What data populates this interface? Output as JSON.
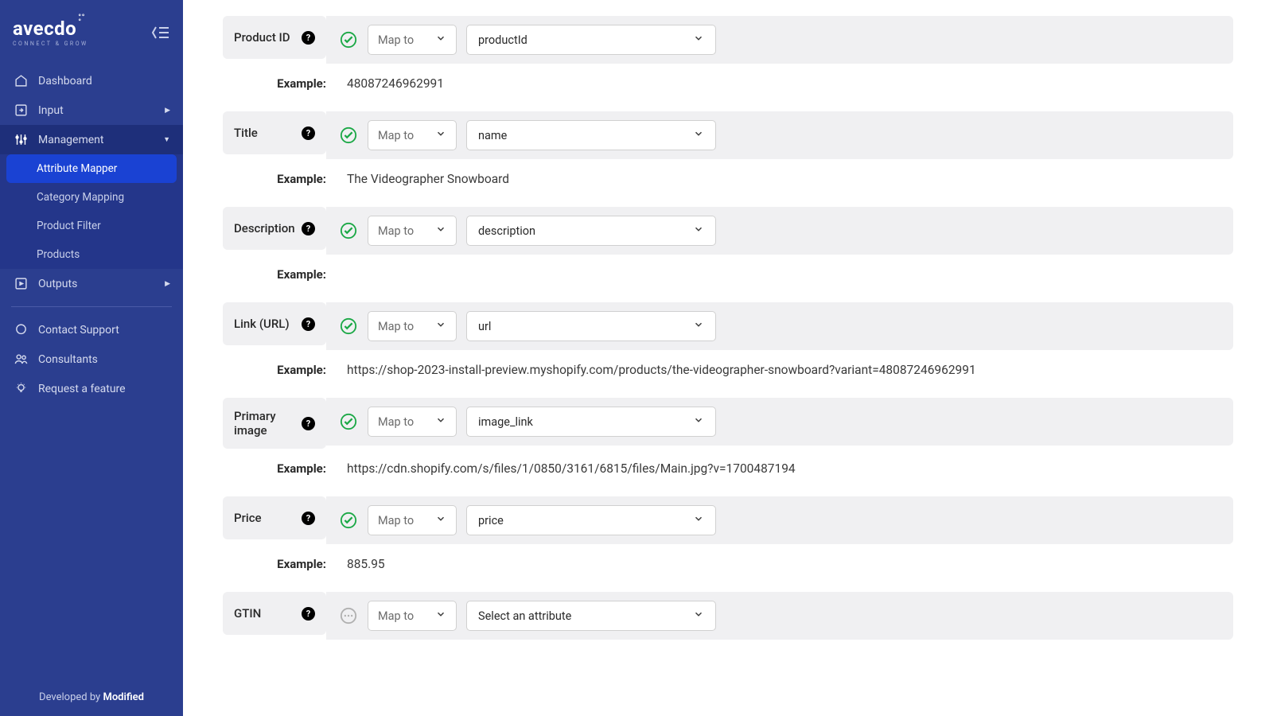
{
  "brand": {
    "name": "avecdo",
    "tagline": "CONNECT & GROW"
  },
  "nav": {
    "dashboard": "Dashboard",
    "input": "Input",
    "management": "Management",
    "sub": {
      "attribute_mapper": "Attribute Mapper",
      "category_mapping": "Category Mapping",
      "product_filter": "Product Filter",
      "products": "Products"
    },
    "outputs": "Outputs",
    "contact_support": "Contact Support",
    "consultants": "Consultants",
    "request_feature": "Request a feature"
  },
  "footer": {
    "prefix": "Developed by ",
    "by": "Modified"
  },
  "labels": {
    "map_to": "Map to",
    "example": "Example:",
    "select_placeholder": "Select an attribute"
  },
  "attrs": [
    {
      "label": "Product ID",
      "value": "productId",
      "status": "ok",
      "example": "48087246962991"
    },
    {
      "label": "Title",
      "value": "name",
      "status": "ok",
      "example": "The Videographer Snowboard"
    },
    {
      "label": "Description",
      "value": "description",
      "status": "ok",
      "example": ""
    },
    {
      "label": "Link (URL)",
      "value": "url",
      "status": "ok",
      "example": "https://shop-2023-install-preview.myshopify.com/products/the-videographer-snowboard?variant=48087246962991"
    },
    {
      "label": "Primary image",
      "value": "image_link",
      "status": "ok",
      "example": "https://cdn.shopify.com/s/files/1/0850/3161/6815/files/Main.jpg?v=1700487194"
    },
    {
      "label": "Price",
      "value": "price",
      "status": "ok",
      "example": "885.95"
    },
    {
      "label": "GTIN",
      "value": "Select an attribute",
      "status": "pending",
      "example": null
    }
  ]
}
